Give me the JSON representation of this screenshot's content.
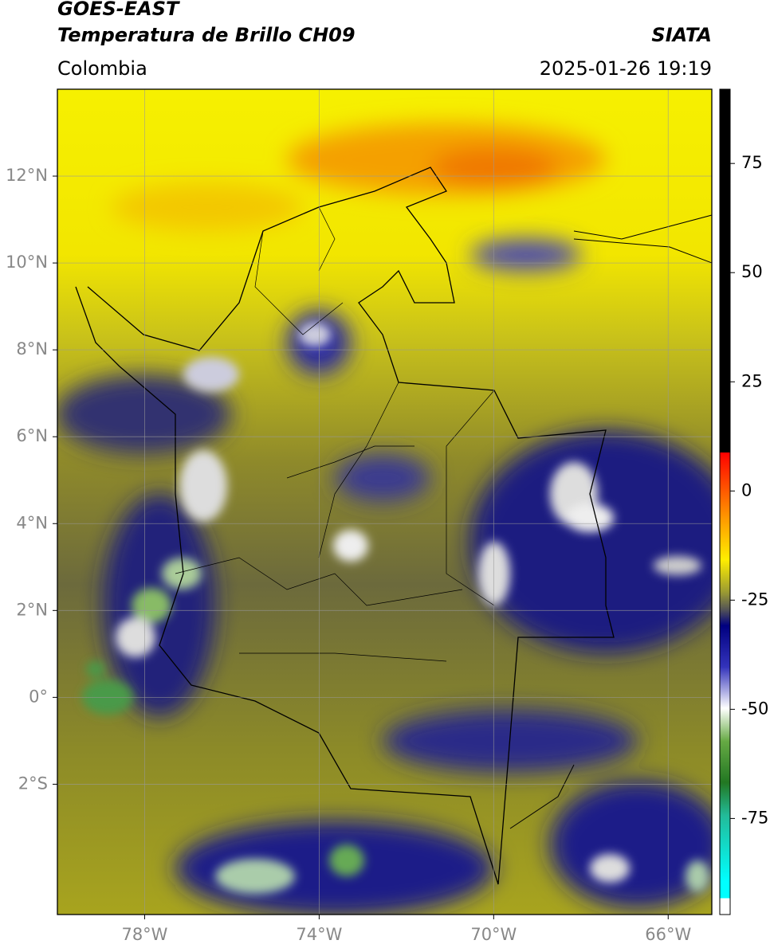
{
  "header": {
    "title": "GOES-EAST",
    "subtitle": "Temperatura de Brillo CH09",
    "brand": "SIATA",
    "region": "Colombia",
    "timestamp": "2025-01-26 19:19"
  },
  "map": {
    "xlim": [
      -80,
      -65
    ],
    "ylim": [
      -5,
      14
    ],
    "xticks": [
      {
        "value": -78,
        "label": "78°W"
      },
      {
        "value": -74,
        "label": "74°W"
      },
      {
        "value": -70,
        "label": "70°W"
      },
      {
        "value": -66,
        "label": "66°W"
      }
    ],
    "yticks": [
      {
        "value": 12,
        "label": "12°N"
      },
      {
        "value": 10,
        "label": "10°N"
      },
      {
        "value": 8,
        "label": "8°N"
      },
      {
        "value": 6,
        "label": "6°N"
      },
      {
        "value": 4,
        "label": "4°N"
      },
      {
        "value": 2,
        "label": "2°N"
      },
      {
        "value": 0,
        "label": "0°"
      },
      {
        "value": -2,
        "label": "2°S"
      }
    ],
    "grid": true
  },
  "colorbar": {
    "lim": [
      -97,
      92
    ],
    "ticks": [
      75,
      50,
      25,
      0,
      -25,
      -50,
      -75
    ]
  }
}
